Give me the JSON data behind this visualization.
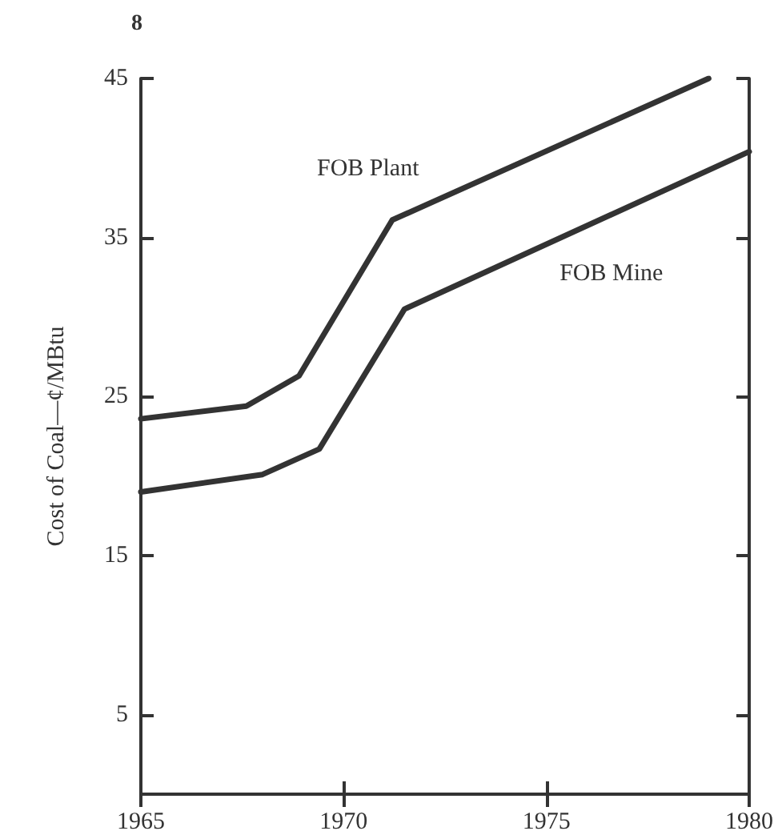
{
  "chart_data": {
    "type": "line",
    "ylabel": "Cost of Coal—¢/MBtu",
    "annotations": [
      "8"
    ],
    "series": [
      {
        "name": "FOB Plant",
        "color": "#333333",
        "x": [
          1965,
          1967.6,
          1968.9,
          1971.2,
          1979.0
        ],
        "values": [
          23.6,
          24.4,
          26.3,
          36.1,
          45
        ]
      },
      {
        "name": "FOB Mine",
        "color": "#333333",
        "x": [
          1965,
          1968.0,
          1969.4,
          1971.5,
          1980
        ],
        "values": [
          19.0,
          20.1,
          21.7,
          30.5,
          40.4
        ]
      }
    ],
    "xlim": [
      1965,
      1980
    ],
    "xticks": [
      1965,
      1970,
      1975,
      1980
    ],
    "ylim": [
      0,
      45
    ],
    "yticks": [
      5,
      15,
      25,
      35,
      45
    ],
    "legend": false,
    "grid": false,
    "marker": "none",
    "line_style": "solid"
  }
}
